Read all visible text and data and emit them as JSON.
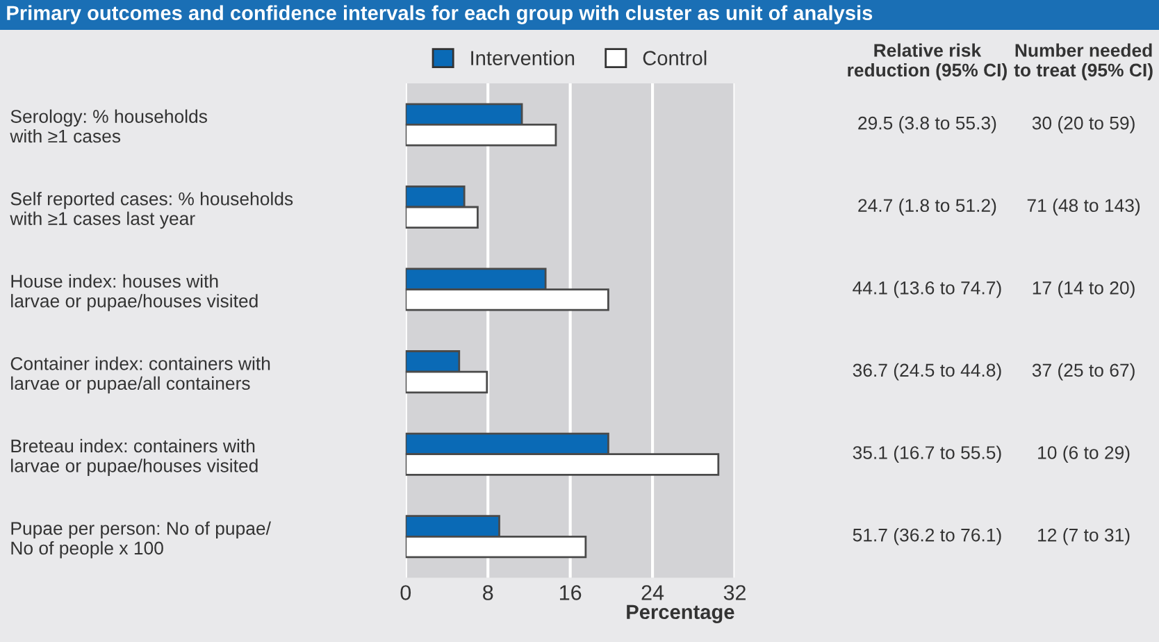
{
  "chart_data": {
    "type": "bar",
    "orientation": "horizontal",
    "title": "Primary outcomes and confidence intervals for each group with cluster as unit of analysis",
    "xlabel": "Percentage",
    "categories": [
      "Serology: % households\nwith ≥1 cases",
      "Self reported cases: % households\nwith ≥1 cases last year",
      "House index: houses with\nlarvae or pupae/houses visited",
      "Container index: containers with\nlarvae or pupae/all containers",
      "Breteau index: containers with\nlarvae or pupae/houses visited",
      "Pupae per person: No of pupae/\nNo of people x 100"
    ],
    "series": [
      {
        "name": "Intervention",
        "color": "#0a6ab6",
        "values": [
          11.3,
          5.7,
          13.6,
          5.2,
          19.7,
          9.1
        ]
      },
      {
        "name": "Control",
        "color": "#ffffff",
        "values": [
          14.6,
          7.0,
          19.7,
          7.9,
          30.4,
          17.5
        ]
      }
    ],
    "xlim": [
      0,
      32
    ],
    "xticks": [
      0,
      8,
      16,
      24,
      32
    ],
    "grid": "x",
    "legend": "top",
    "annotations": [
      "Relative risk\nreduction (95% CI)",
      "Number needed\nto treat (95% CI)",
      "29.5 (3.8 to 55.3)",
      "30 (20 to 59)",
      "24.7 (1.8 to 51.2)",
      "71 (48 to 143)",
      "44.1 (13.6 to 74.7)",
      "17 (14 to 20)",
      "36.7 (24.5 to 44.8)",
      "37 (25 to 67)",
      "35.1 (16.7 to 55.5)",
      "10 (6 to 29)",
      "51.7 (36.2 to 76.1)",
      "12 (7 to 31)"
    ]
  }
}
